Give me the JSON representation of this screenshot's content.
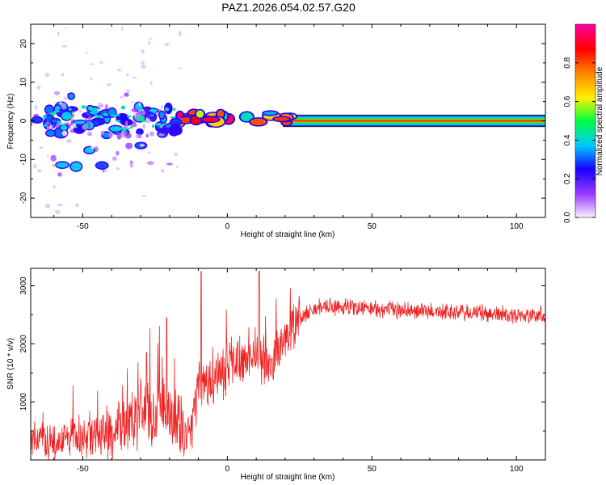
{
  "title": "PAZ1.2026.054.02.57.G20",
  "chart_data": [
    {
      "type": "heatmap",
      "title": "PAZ1.2026.054.02.57.G20",
      "xlabel": "Height of straight line (km)",
      "ylabel": "Frequency (Hz)",
      "xlim": [
        -68,
        110
      ],
      "ylim": [
        -25,
        25
      ],
      "xticks": [
        -50,
        0,
        50,
        100
      ],
      "yticks": [
        -20,
        -10,
        0,
        10,
        20
      ],
      "colorbar": {
        "label": "Normalized spectral amplitude",
        "range": [
          0,
          1
        ],
        "ticks": [
          0.0,
          0.2,
          0.4,
          0.6,
          0.8
        ],
        "colors": [
          "#f8f0ff",
          "#9a3cff",
          "#1a00ff",
          "#00c8ff",
          "#00ff40",
          "#fff000",
          "#ff8000",
          "#ff0000",
          "#ff00a0"
        ]
      },
      "features": [
        {
          "name": "steady tone",
          "x_range": [
            22,
            110
          ],
          "freq_hz": 0,
          "amplitude": 1.0
        },
        {
          "name": "scattered energy",
          "x_range": [
            -68,
            -18
          ],
          "freq_range_hz": [
            -12,
            6
          ],
          "amplitude": 0.3
        },
        {
          "name": "transition",
          "x_range": [
            -18,
            22
          ],
          "freq_range_hz": [
            -1,
            2
          ],
          "amplitude": 0.7
        }
      ]
    },
    {
      "type": "line",
      "xlabel": "Height of straight line (km)",
      "ylabel": "SNR (10 * v/v)",
      "xlim": [
        -68,
        110
      ],
      "ylim": [
        0,
        3300
      ],
      "xticks": [
        -50,
        0,
        50,
        100
      ],
      "yticks": [
        1000,
        2000,
        3000
      ],
      "series": [
        {
          "name": "SNR",
          "color": "#ee2222",
          "x": [
            -68,
            -60,
            -50,
            -40,
            -30,
            -20,
            -15,
            -12,
            -10,
            -8,
            -5,
            0,
            5,
            8,
            10,
            12,
            15,
            20,
            25,
            30,
            40,
            50,
            60,
            70,
            80,
            90,
            100,
            110
          ],
          "y": [
            300,
            350,
            400,
            500,
            800,
            900,
            500,
            700,
            1200,
            1300,
            1400,
            1600,
            1750,
            1850,
            1900,
            1700,
            1650,
            2050,
            2450,
            2600,
            2650,
            2600,
            2580,
            2560,
            2540,
            2520,
            2500,
            2480
          ],
          "spikes": [
            {
              "x": -9,
              "y": 3250
            },
            {
              "x": 11,
              "y": 3250
            },
            {
              "x": -21,
              "y": 2450
            },
            {
              "x": -28,
              "y": 1850
            }
          ]
        }
      ]
    }
  ]
}
